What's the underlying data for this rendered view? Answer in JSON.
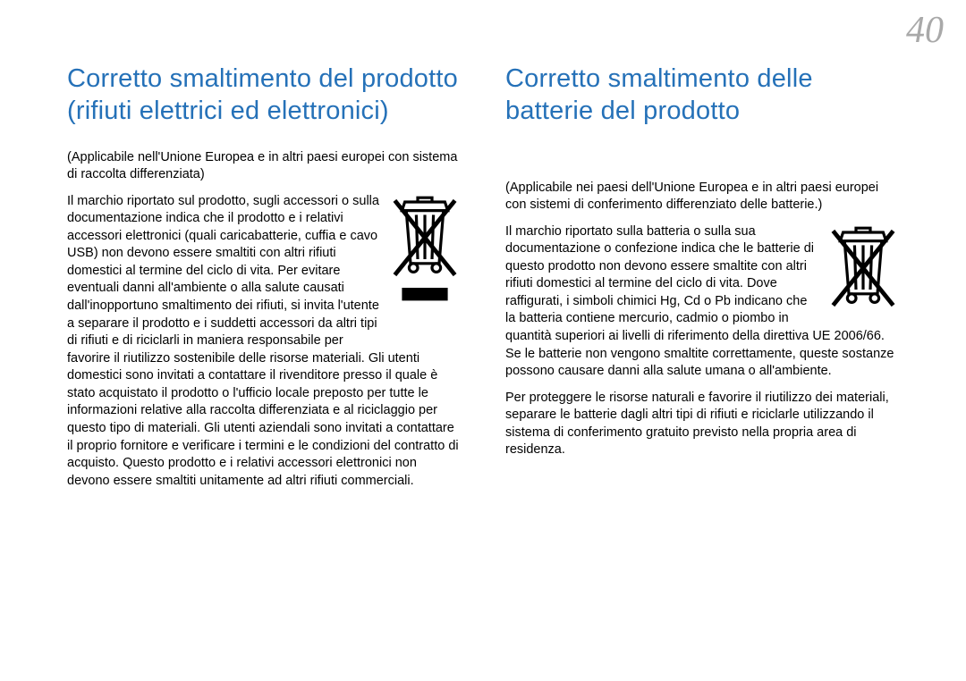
{
  "page_number": "40",
  "colors": {
    "heading": "#2571b8",
    "text": "#000000",
    "page_number": "#a9a9a9",
    "background": "#ffffff",
    "icon_stroke": "#000000"
  },
  "typography": {
    "heading_fontsize_pt": 22,
    "body_fontsize_pt": 11,
    "page_number_fontsize_pt": 32,
    "page_number_style": "italic"
  },
  "left": {
    "heading": "Corretto smaltimento del prodotto\n(rifiuti elettrici ed elettronici)",
    "note": "(Applicabile nell'Unione Europea e in altri paesi europei con sistema di raccolta differenziata)",
    "body": "Il marchio riportato sul prodotto, sugli accessori o sulla documentazione indica che il prodotto e i relativi accessori elettronici (quali caricabatterie, cuffia e cavo USB) non devono essere smaltiti con altri rifiuti domestici al termine del ciclo di vita. Per evitare eventuali danni all'ambiente o alla salute causati dall'inopportuno smaltimento dei rifiuti, si invita l'utente a separare il prodotto e i suddetti accessori da altri tipi di rifiuti e di riciclarli in maniera responsabile per favorire il riutilizzo sostenibile delle risorse materiali. Gli utenti domestici sono invitati a contattare il rivenditore presso il quale è stato acquistato il prodotto o l'ufficio locale preposto per tutte le informazioni relative alla raccolta differenziata e al riciclaggio per questo tipo di materiali. Gli utenti aziendali sono invitati a contattare il proprio fornitore e verificare i termini e le condizioni del contratto di acquisto. Questo prodotto e i relativi accessori elettronici non devono essere smaltiti unitamente ad altri rifiuti commerciali.",
    "icon": {
      "type": "weee-bin-crossed",
      "has_bar": true
    }
  },
  "right": {
    "heading": "Corretto smaltimento delle batterie del prodotto",
    "note": "(Applicabile nei paesi dell'Unione Europea e in altri paesi europei con sistemi di conferimento differenziato delle batterie.)",
    "body1": "Il marchio riportato sulla batteria o sulla sua documentazione o confezione indica che le batterie di questo prodotto non devono essere smaltite con altri rifiuti domestici al termine del ciclo di vita. Dove raffigurati, i simboli chimici Hg, Cd o Pb indicano che la batteria contiene mercurio, cadmio o piombo in quantità superiori ai livelli di riferimento della direttiva UE 2006/66. Se le batterie non vengono smaltite correttamente, queste sostanze possono causare danni alla salute umana o all'ambiente.",
    "body2": "Per proteggere le risorse naturali e favorire il riutilizzo dei materiali, separare le batterie dagli altri tipi di rifiuti e riciclarle utilizzando il sistema di conferimento gratuito previsto nella propria area di residenza.",
    "icon": {
      "type": "weee-bin-crossed",
      "has_bar": false
    }
  }
}
